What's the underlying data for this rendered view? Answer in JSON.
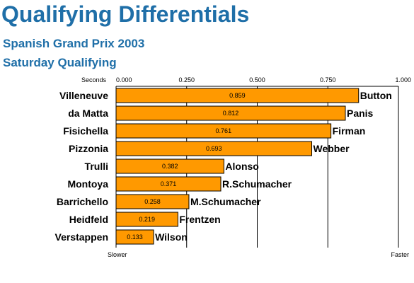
{
  "title": "Qualifying Differentials",
  "subtitle": "Spanish Grand Prix 2003",
  "subtitle2": "Saturday Qualifying",
  "colors": {
    "title": "#1f6fa8",
    "bar": "#ff9900",
    "bar_stroke": "#000000"
  },
  "chart_data": {
    "type": "bar",
    "orientation": "horizontal",
    "axis_unit_label": "Seconds",
    "xlim": [
      0,
      1
    ],
    "xticks": [
      "0.000",
      "0.250",
      "0.500",
      "0.750",
      "1.000"
    ],
    "xtick_values": [
      0,
      0.25,
      0.5,
      0.75,
      1
    ],
    "slower_label": "Slower",
    "faster_label": "Faster",
    "grid": true,
    "rows": [
      {
        "slower": "Villeneuve",
        "faster": "Button",
        "value": 0.859,
        "label": "0.859"
      },
      {
        "slower": "da Matta",
        "faster": "Panis",
        "value": 0.812,
        "label": "0.812"
      },
      {
        "slower": "Fisichella",
        "faster": "Firman",
        "value": 0.761,
        "label": "0.761"
      },
      {
        "slower": "Pizzonia",
        "faster": "Webber",
        "value": 0.693,
        "label": "0.693"
      },
      {
        "slower": "Trulli",
        "faster": "Alonso",
        "value": 0.382,
        "label": "0.382"
      },
      {
        "slower": "Montoya",
        "faster": "R.Schumacher",
        "value": 0.371,
        "label": "0.371"
      },
      {
        "slower": "Barrichello",
        "faster": "M.Schumacher",
        "value": 0.258,
        "label": "0.258"
      },
      {
        "slower": "Heidfeld",
        "faster": "Frentzen",
        "value": 0.219,
        "label": "0.219"
      },
      {
        "slower": "Verstappen",
        "faster": "Wilson",
        "value": 0.133,
        "label": "0.133"
      }
    ]
  }
}
